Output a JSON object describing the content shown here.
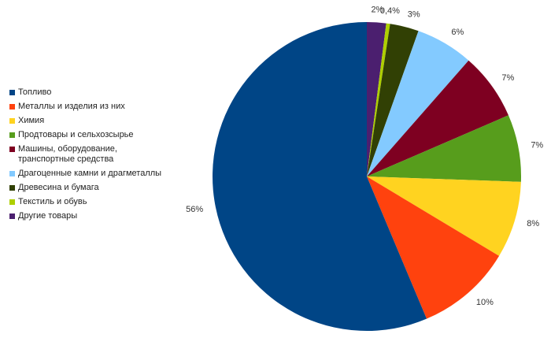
{
  "chart_data": {
    "type": "pie",
    "categories": [
      "Топливо",
      "Металлы и изделия из них",
      "Химия",
      "Продтовары и сельхозсырье",
      "Машины, оборудование, транспортные средства",
      "Драгоценные камни и драгметаллы",
      "Древесина и бумага",
      "Текстиль и обувь",
      "Другие товары"
    ],
    "values": [
      56,
      10,
      8,
      7,
      7,
      6,
      3,
      0.4,
      2
    ],
    "value_labels": [
      "56%",
      "10%",
      "8%",
      "7%",
      "7%",
      "6%",
      "3%",
      "0,4%",
      "2%"
    ],
    "colors": [
      "#004586",
      "#ff420e",
      "#ffd320",
      "#579d1c",
      "#7e0021",
      "#83caff",
      "#314004",
      "#aecf00",
      "#4b1f6f"
    ],
    "legend": "left"
  }
}
